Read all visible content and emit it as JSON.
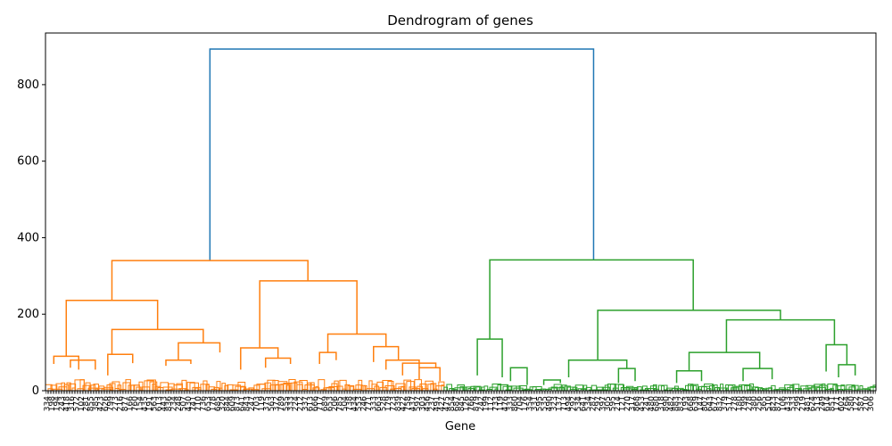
{
  "chart_data": {
    "type": "dendrogram",
    "title": "Dendrogram of genes",
    "xlabel": "Gene",
    "ylabel": "",
    "ylim": [
      0,
      935
    ],
    "yticks": [
      0,
      200,
      400,
      600,
      800
    ],
    "grid": false,
    "legend": "none",
    "colors": {
      "root": "#1f77b4",
      "cluster_1": "#ff7f0e",
      "cluster_2": "#2ca02c"
    },
    "links": [
      {
        "cluster": "root",
        "left": 0.198,
        "right": 0.66,
        "h_left": 340,
        "h_right": 342,
        "h": 893
      },
      {
        "cluster": "cluster_1",
        "left": 0.08,
        "right": 0.316,
        "h_left": 236,
        "h_right": 287,
        "h": 340
      },
      {
        "cluster": "cluster_1",
        "left": 0.025,
        "right": 0.135,
        "h_left": 90,
        "h_right": 160,
        "h": 236
      },
      {
        "cluster": "cluster_1",
        "left": 0.258,
        "right": 0.375,
        "h_left": 112,
        "h_right": 148,
        "h": 287
      },
      {
        "cluster": "cluster_1",
        "left": 0.08,
        "right": 0.19,
        "h_left": 95,
        "h_right": 125,
        "h": 160
      },
      {
        "cluster": "cluster_1",
        "left": 0.01,
        "right": 0.04,
        "h_left": 70,
        "h_right": 55,
        "h": 90
      },
      {
        "cluster": "cluster_1",
        "left": 0.03,
        "right": 0.06,
        "h_left": 60,
        "h_right": 55,
        "h": 80
      },
      {
        "cluster": "cluster_1",
        "left": 0.16,
        "right": 0.21,
        "h_left": 80,
        "h_right": 100,
        "h": 125
      },
      {
        "cluster": "cluster_1",
        "left": 0.145,
        "right": 0.175,
        "h_left": 65,
        "h_right": 70,
        "h": 80
      },
      {
        "cluster": "cluster_1",
        "left": 0.075,
        "right": 0.105,
        "h_left": 40,
        "h_right": 72,
        "h": 95
      },
      {
        "cluster": "cluster_1",
        "left": 0.235,
        "right": 0.28,
        "h_left": 55,
        "h_right": 85,
        "h": 112
      },
      {
        "cluster": "cluster_1",
        "left": 0.265,
        "right": 0.295,
        "h_left": 60,
        "h_right": 70,
        "h": 85
      },
      {
        "cluster": "cluster_1",
        "left": 0.34,
        "right": 0.41,
        "h_left": 100,
        "h_right": 115,
        "h": 148
      },
      {
        "cluster": "cluster_1",
        "left": 0.33,
        "right": 0.35,
        "h_left": 70,
        "h_right": 80,
        "h": 100
      },
      {
        "cluster": "cluster_1",
        "left": 0.395,
        "right": 0.425,
        "h_left": 75,
        "h_right": 80,
        "h": 115
      },
      {
        "cluster": "cluster_1",
        "left": 0.41,
        "right": 0.45,
        "h_left": 55,
        "h_right": 60,
        "h": 80
      },
      {
        "cluster": "cluster_1",
        "left": 0.43,
        "right": 0.47,
        "h_left": 40,
        "h_right": 60,
        "h": 72
      },
      {
        "cluster": "cluster_1",
        "left": 0.45,
        "right": 0.475,
        "h_left": 30,
        "h_right": 25,
        "h": 60
      },
      {
        "cluster": "cluster_2",
        "left": 0.535,
        "right": 0.78,
        "h_left": 135,
        "h_right": 210,
        "h": 342
      },
      {
        "cluster": "cluster_2",
        "left": 0.52,
        "right": 0.55,
        "h_left": 40,
        "h_right": 35,
        "h": 135
      },
      {
        "cluster": "cluster_2",
        "left": 0.665,
        "right": 0.885,
        "h_left": 80,
        "h_right": 185,
        "h": 210
      },
      {
        "cluster": "cluster_2",
        "left": 0.63,
        "right": 0.7,
        "h_left": 35,
        "h_right": 58,
        "h": 80
      },
      {
        "cluster": "cluster_2",
        "left": 0.82,
        "right": 0.95,
        "h_left": 100,
        "h_right": 120,
        "h": 185
      },
      {
        "cluster": "cluster_2",
        "left": 0.775,
        "right": 0.86,
        "h_left": 52,
        "h_right": 58,
        "h": 100
      },
      {
        "cluster": "cluster_2",
        "left": 0.94,
        "right": 0.965,
        "h_left": 50,
        "h_right": 68,
        "h": 120
      },
      {
        "cluster": "cluster_2",
        "left": 0.56,
        "right": 0.58,
        "h_left": 25,
        "h_right": 15,
        "h": 60
      },
      {
        "cluster": "cluster_2",
        "left": 0.6,
        "right": 0.62,
        "h_left": 15,
        "h_right": 20,
        "h": 28
      },
      {
        "cluster": "cluster_2",
        "left": 0.69,
        "right": 0.71,
        "h_left": 20,
        "h_right": 25,
        "h": 58
      },
      {
        "cluster": "cluster_2",
        "left": 0.76,
        "right": 0.79,
        "h_left": 20,
        "h_right": 25,
        "h": 52
      },
      {
        "cluster": "cluster_2",
        "left": 0.84,
        "right": 0.875,
        "h_left": 25,
        "h_right": 30,
        "h": 58
      },
      {
        "cluster": "cluster_2",
        "left": 0.955,
        "right": 0.975,
        "h_left": 35,
        "h_right": 40,
        "h": 68
      }
    ]
  }
}
